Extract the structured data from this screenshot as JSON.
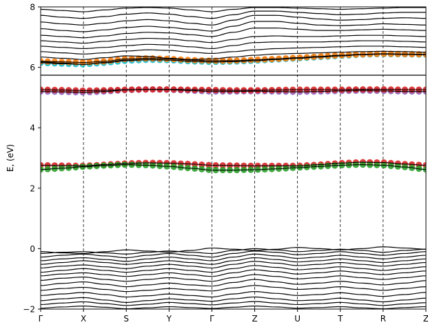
{
  "chart_data": {
    "type": "line",
    "title": "",
    "xlabel": "",
    "ylabel": "E, (eV)",
    "xlim": [
      0,
      9
    ],
    "ylim": [
      -2,
      8
    ],
    "x_ticks": [
      {
        "pos": 0,
        "label": "Γ"
      },
      {
        "pos": 1,
        "label": "X"
      },
      {
        "pos": 2,
        "label": "S"
      },
      {
        "pos": 3,
        "label": "Y"
      },
      {
        "pos": 4,
        "label": "Γ"
      },
      {
        "pos": 5,
        "label": "Z"
      },
      {
        "pos": 6,
        "label": "U"
      },
      {
        "pos": 7,
        "label": "T"
      },
      {
        "pos": 8,
        "label": "R"
      },
      {
        "pos": 9,
        "label": "Z"
      }
    ],
    "y_ticks": [
      -2,
      0,
      2,
      4,
      6,
      8
    ],
    "vertical_gridlines": [
      1,
      2,
      3,
      4,
      5,
      6,
      7,
      8
    ],
    "grid": false,
    "legend": "none",
    "colors": {
      "bands": "#000000",
      "red_projection": "#d62728",
      "green_projection": "#2ca02c",
      "purple_projection": "#9467bd",
      "orange_projection": "#ff7f0e",
      "cyan_projection": "#17becf",
      "blue_projection": "#1f77b4"
    },
    "x_samples": [
      0,
      0.5,
      1,
      1.5,
      2,
      2.5,
      3,
      3.5,
      4,
      4.5,
      5,
      5.5,
      6,
      6.5,
      7,
      7.5,
      8,
      8.5,
      9
    ],
    "fat_bands": [
      {
        "color": "#d62728",
        "values": [
          2.76,
          2.75,
          2.74,
          2.78,
          2.82,
          2.84,
          2.83,
          2.8,
          2.76,
          2.75,
          2.74,
          2.74,
          2.74,
          2.78,
          2.83,
          2.86,
          2.85,
          2.8,
          2.76
        ]
      },
      {
        "color": "#2ca02c",
        "values": [
          2.62,
          2.66,
          2.71,
          2.75,
          2.78,
          2.76,
          2.72,
          2.66,
          2.6,
          2.6,
          2.61,
          2.64,
          2.68,
          2.72,
          2.76,
          2.78,
          2.76,
          2.7,
          2.62
        ]
      },
      {
        "color": "#9467bd",
        "values": [
          5.2,
          5.19,
          5.17,
          5.2,
          5.25,
          5.27,
          5.26,
          5.23,
          5.2,
          5.2,
          5.21,
          5.2,
          5.19,
          5.2,
          5.22,
          5.23,
          5.22,
          5.2,
          5.2
        ]
      },
      {
        "color": "#d62728",
        "values": [
          5.26,
          5.25,
          5.23,
          5.24,
          5.26,
          5.27,
          5.27,
          5.26,
          5.25,
          5.24,
          5.24,
          5.25,
          5.26,
          5.26,
          5.26,
          5.27,
          5.27,
          5.26,
          5.26
        ]
      },
      {
        "color": "#17becf",
        "values": [
          6.15,
          6.12,
          6.1,
          6.15,
          6.22,
          6.25,
          6.24,
          6.2,
          6.18,
          6.19,
          6.22,
          6.26,
          6.3,
          6.34,
          6.38,
          6.42,
          6.44,
          6.43,
          6.42
        ]
      },
      {
        "color": "#ff7f0e",
        "values": [
          6.2,
          6.18,
          6.16,
          6.2,
          6.28,
          6.3,
          6.28,
          6.24,
          6.22,
          6.22,
          6.25,
          6.28,
          6.32,
          6.36,
          6.4,
          6.43,
          6.45,
          6.44,
          6.43
        ]
      }
    ],
    "bands": [
      [
        -1.97,
        -1.93,
        -1.9,
        -1.94,
        -1.99,
        -1.96,
        -1.92,
        -1.95,
        -1.98,
        -1.94,
        -1.9,
        -1.93,
        -1.97,
        -1.95,
        -1.92,
        -1.96,
        -1.99,
        -1.95,
        -1.92
      ],
      [
        -1.85,
        -1.8,
        -1.76,
        -1.82,
        -1.88,
        -1.84,
        -1.78,
        -1.82,
        -1.86,
        -1.8,
        -1.75,
        -1.8,
        -1.85,
        -1.82,
        -1.78,
        -1.83,
        -1.88,
        -1.83,
        -1.79
      ],
      [
        -1.72,
        -1.66,
        -1.62,
        -1.7,
        -1.78,
        -1.72,
        -1.66,
        -1.7,
        -1.74,
        -1.66,
        -1.6,
        -1.66,
        -1.72,
        -1.7,
        -1.64,
        -1.7,
        -1.76,
        -1.7,
        -1.64
      ],
      [
        -1.55,
        -1.5,
        -1.45,
        -1.52,
        -1.6,
        -1.56,
        -1.5,
        -1.55,
        -1.6,
        -1.5,
        -1.42,
        -1.48,
        -1.55,
        -1.52,
        -1.46,
        -1.52,
        -1.58,
        -1.52,
        -1.45
      ],
      [
        -1.38,
        -1.32,
        -1.28,
        -1.35,
        -1.42,
        -1.38,
        -1.32,
        -1.36,
        -1.4,
        -1.3,
        -1.22,
        -1.28,
        -1.35,
        -1.32,
        -1.26,
        -1.32,
        -1.38,
        -1.32,
        -1.26
      ],
      [
        -1.22,
        -1.15,
        -1.1,
        -1.18,
        -1.26,
        -1.2,
        -1.14,
        -1.2,
        -1.24,
        -1.12,
        -1.02,
        -1.1,
        -1.18,
        -1.14,
        -1.08,
        -1.14,
        -1.2,
        -1.14,
        -1.06
      ],
      [
        -1.05,
        -0.98,
        -0.94,
        -1.02,
        -1.08,
        -1.02,
        -0.96,
        -1.02,
        -1.08,
        -0.96,
        -0.86,
        -0.92,
        -1.0,
        -0.96,
        -0.9,
        -0.96,
        -1.02,
        -0.96,
        -0.9
      ],
      [
        -0.9,
        -0.84,
        -0.8,
        -0.86,
        -0.92,
        -0.86,
        -0.8,
        -0.86,
        -0.92,
        -0.8,
        -0.7,
        -0.76,
        -0.84,
        -0.8,
        -0.74,
        -0.8,
        -0.86,
        -0.8,
        -0.74
      ],
      [
        -0.78,
        -0.72,
        -0.66,
        -0.72,
        -0.78,
        -0.72,
        -0.66,
        -0.72,
        -0.78,
        -0.66,
        -0.56,
        -0.62,
        -0.7,
        -0.66,
        -0.6,
        -0.66,
        -0.72,
        -0.66,
        -0.6
      ],
      [
        -0.64,
        -0.58,
        -0.54,
        -0.6,
        -0.66,
        -0.58,
        -0.52,
        -0.58,
        -0.64,
        -0.52,
        -0.42,
        -0.48,
        -0.56,
        -0.52,
        -0.46,
        -0.52,
        -0.58,
        -0.52,
        -0.46
      ],
      [
        -0.52,
        -0.46,
        -0.4,
        -0.46,
        -0.52,
        -0.46,
        -0.4,
        -0.46,
        -0.52,
        -0.4,
        -0.3,
        -0.36,
        -0.44,
        -0.4,
        -0.34,
        -0.4,
        -0.46,
        -0.4,
        -0.34
      ],
      [
        -0.4,
        -0.34,
        -0.3,
        -0.36,
        -0.42,
        -0.34,
        -0.28,
        -0.34,
        -0.4,
        -0.28,
        -0.18,
        -0.24,
        -0.32,
        -0.28,
        -0.22,
        -0.28,
        -0.34,
        -0.28,
        -0.22
      ],
      [
        -0.28,
        -0.22,
        -0.18,
        -0.24,
        -0.3,
        -0.22,
        -0.16,
        -0.22,
        -0.28,
        -0.16,
        -0.08,
        -0.12,
        -0.2,
        -0.16,
        -0.1,
        -0.16,
        -0.22,
        -0.16,
        -0.1
      ],
      [
        -0.16,
        -0.12,
        -0.1,
        -0.14,
        -0.18,
        -0.12,
        -0.08,
        -0.12,
        -0.16,
        -0.06,
        0.0,
        -0.04,
        -0.1,
        -0.06,
        -0.02,
        -0.06,
        -0.12,
        -0.06,
        -0.02
      ],
      [
        -0.1,
        -0.14,
        -0.16,
        -0.1,
        -0.04,
        -0.08,
        -0.12,
        -0.06,
        0.02,
        -0.02,
        -0.06,
        -0.02,
        0.04,
        0.0,
        -0.04,
        0.0,
        0.06,
        0.02,
        -0.02
      ],
      [
        5.74,
        5.74,
        5.74,
        5.74,
        5.74,
        5.74,
        5.74,
        5.74,
        5.74,
        5.74,
        5.74,
        5.74,
        5.74,
        5.74,
        5.74,
        5.74,
        5.74,
        5.74,
        5.74
      ],
      [
        6.18,
        6.14,
        6.1,
        6.16,
        6.24,
        6.26,
        6.24,
        6.2,
        6.18,
        6.19,
        6.22,
        6.26,
        6.3,
        6.34,
        6.38,
        6.42,
        6.44,
        6.43,
        6.42
      ],
      [
        6.34,
        6.3,
        6.26,
        6.32,
        6.38,
        6.36,
        6.3,
        6.26,
        6.28,
        6.34,
        6.4,
        6.44,
        6.46,
        6.48,
        6.5,
        6.52,
        6.53,
        6.52,
        6.5
      ],
      [
        6.52,
        6.48,
        6.44,
        6.48,
        6.54,
        6.58,
        6.56,
        6.5,
        6.46,
        6.52,
        6.58,
        6.62,
        6.64,
        6.66,
        6.68,
        6.7,
        6.7,
        6.68,
        6.66
      ],
      [
        6.7,
        6.66,
        6.62,
        6.66,
        6.72,
        6.76,
        6.74,
        6.68,
        6.62,
        6.72,
        6.82,
        6.84,
        6.84,
        6.84,
        6.86,
        6.88,
        6.88,
        6.86,
        6.84
      ],
      [
        6.88,
        6.84,
        6.8,
        6.86,
        6.92,
        6.96,
        6.94,
        6.88,
        6.82,
        6.92,
        7.02,
        7.04,
        7.02,
        7.02,
        7.04,
        7.06,
        7.06,
        7.04,
        7.02
      ],
      [
        7.06,
        7.02,
        6.98,
        7.04,
        7.12,
        7.16,
        7.14,
        7.08,
        7.02,
        7.16,
        7.3,
        7.3,
        7.26,
        7.22,
        7.22,
        7.24,
        7.26,
        7.24,
        7.22
      ],
      [
        7.28,
        7.22,
        7.18,
        7.24,
        7.32,
        7.36,
        7.32,
        7.26,
        7.2,
        7.36,
        7.52,
        7.52,
        7.46,
        7.4,
        7.38,
        7.4,
        7.44,
        7.42,
        7.4
      ],
      [
        7.5,
        7.44,
        7.4,
        7.46,
        7.54,
        7.58,
        7.54,
        7.46,
        7.4,
        7.56,
        7.72,
        7.72,
        7.66,
        7.6,
        7.56,
        7.58,
        7.62,
        7.64,
        7.62
      ],
      [
        7.72,
        7.66,
        7.62,
        7.68,
        7.76,
        7.8,
        7.76,
        7.68,
        7.62,
        7.74,
        7.86,
        7.86,
        7.82,
        7.78,
        7.74,
        7.76,
        7.8,
        7.82,
        7.82
      ],
      [
        7.92,
        7.88,
        7.84,
        7.9,
        7.96,
        7.98,
        7.96,
        7.9,
        7.84,
        7.92,
        7.98,
        7.98,
        7.96,
        7.94,
        7.92,
        7.94,
        7.96,
        7.98,
        7.98
      ]
    ]
  }
}
